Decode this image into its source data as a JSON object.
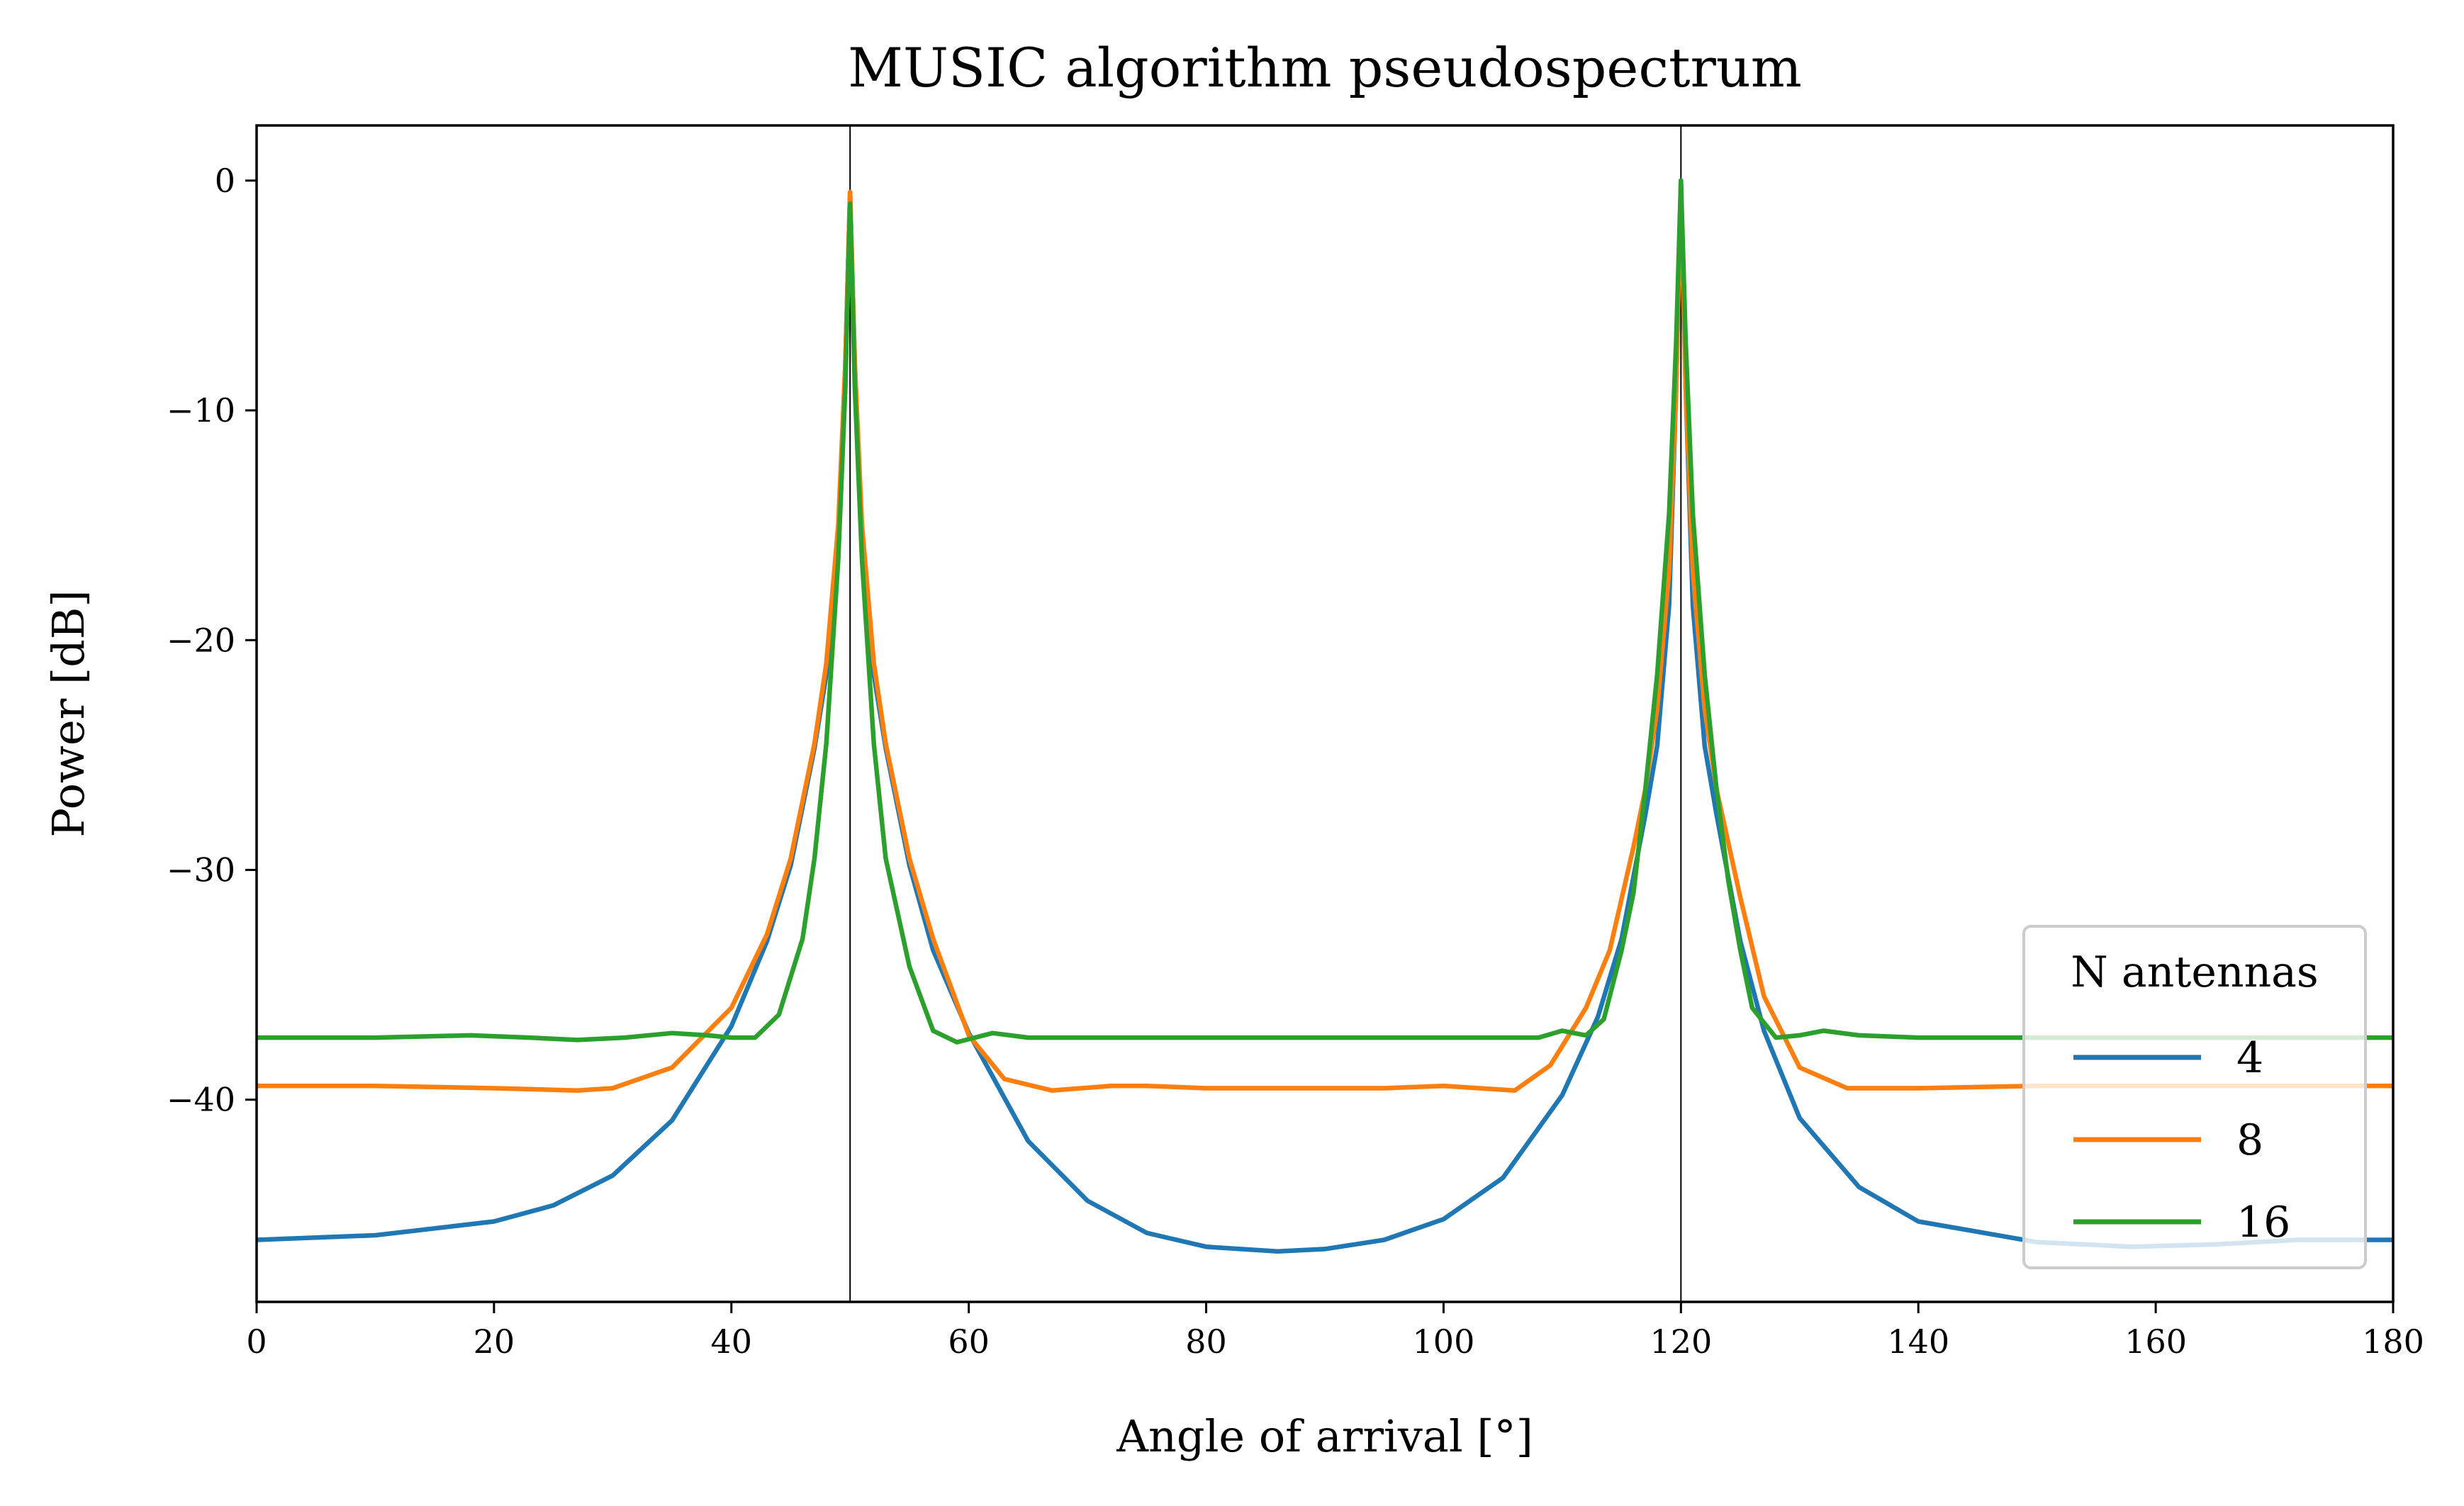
{
  "chart_data": {
    "type": "line",
    "title": "MUSIC algorithm pseudospectrum",
    "xlabel": "Angle of arrival [°]",
    "ylabel": "Power [dB]",
    "xlim": [
      0,
      180
    ],
    "ylim": [
      -48.8,
      2.4
    ],
    "xticks": [
      0,
      20,
      40,
      60,
      80,
      100,
      120,
      140,
      160,
      180
    ],
    "yticks": [
      0,
      -10,
      -20,
      -30,
      -40
    ],
    "ytick_labels": [
      "0",
      "−10",
      "−20",
      "−30",
      "−40"
    ],
    "vlines": [
      50,
      120
    ],
    "legend": {
      "title": "N antennas",
      "placement": "lower right"
    },
    "series": [
      {
        "name": "4",
        "color": "#1f77b4",
        "points": [
          [
            0,
            -46.1
          ],
          [
            10,
            -45.9
          ],
          [
            20,
            -45.3
          ],
          [
            25,
            -44.6
          ],
          [
            30,
            -43.3
          ],
          [
            35,
            -40.9
          ],
          [
            40,
            -36.8
          ],
          [
            43,
            -33.1
          ],
          [
            45,
            -29.8
          ],
          [
            47,
            -24.7
          ],
          [
            48,
            -21.5
          ],
          [
            49,
            -15.5
          ],
          [
            49.6,
            -8
          ],
          [
            50,
            -0.5
          ],
          [
            50.4,
            -8
          ],
          [
            51,
            -15.5
          ],
          [
            52,
            -21.5
          ],
          [
            53,
            -24.7
          ],
          [
            55,
            -29.8
          ],
          [
            57,
            -33.5
          ],
          [
            60,
            -37.1
          ],
          [
            65,
            -41.8
          ],
          [
            70,
            -44.4
          ],
          [
            75,
            -45.8
          ],
          [
            80,
            -46.4
          ],
          [
            86,
            -46.6
          ],
          [
            90,
            -46.5
          ],
          [
            95,
            -46.1
          ],
          [
            100,
            -45.2
          ],
          [
            105,
            -43.4
          ],
          [
            110,
            -39.8
          ],
          [
            113,
            -36.4
          ],
          [
            115,
            -33.0
          ],
          [
            117,
            -27.6
          ],
          [
            118,
            -24.6
          ],
          [
            119,
            -18.5
          ],
          [
            119.6,
            -9
          ],
          [
            120,
            0
          ],
          [
            120.4,
            -9
          ],
          [
            121,
            -18.5
          ],
          [
            122,
            -24.6
          ],
          [
            123,
            -27.6
          ],
          [
            125,
            -33.1
          ],
          [
            127,
            -37.0
          ],
          [
            130,
            -40.8
          ],
          [
            135,
            -43.8
          ],
          [
            140,
            -45.3
          ],
          [
            150,
            -46.2
          ],
          [
            158,
            -46.4
          ],
          [
            165,
            -46.3
          ],
          [
            172,
            -46.1
          ],
          [
            180,
            -46.1
          ]
        ]
      },
      {
        "name": "8",
        "color": "#ff7f0e",
        "points": [
          [
            0,
            -39.4
          ],
          [
            10,
            -39.4
          ],
          [
            20,
            -39.5
          ],
          [
            27,
            -39.6
          ],
          [
            30,
            -39.5
          ],
          [
            35,
            -38.6
          ],
          [
            40,
            -36.0
          ],
          [
            43,
            -32.8
          ],
          [
            45,
            -29.5
          ],
          [
            47,
            -24.5
          ],
          [
            48,
            -21.0
          ],
          [
            49,
            -15.0
          ],
          [
            49.6,
            -8
          ],
          [
            50,
            -0.5
          ],
          [
            50.4,
            -8
          ],
          [
            51,
            -15.0
          ],
          [
            52,
            -21.0
          ],
          [
            53,
            -24.5
          ],
          [
            55,
            -29.5
          ],
          [
            57,
            -33.0
          ],
          [
            60,
            -37.2
          ],
          [
            63,
            -39.1
          ],
          [
            67,
            -39.6
          ],
          [
            72,
            -39.4
          ],
          [
            75,
            -39.4
          ],
          [
            80,
            -39.5
          ],
          [
            85,
            -39.5
          ],
          [
            90,
            -39.5
          ],
          [
            95,
            -39.5
          ],
          [
            100,
            -39.4
          ],
          [
            103,
            -39.5
          ],
          [
            106,
            -39.6
          ],
          [
            109,
            -38.5
          ],
          [
            112,
            -36.0
          ],
          [
            114,
            -33.5
          ],
          [
            116,
            -29.0
          ],
          [
            117,
            -26.5
          ],
          [
            118,
            -23.0
          ],
          [
            119,
            -17.0
          ],
          [
            119.6,
            -9
          ],
          [
            120,
            -0.3
          ],
          [
            120.4,
            -9
          ],
          [
            121,
            -17.0
          ],
          [
            122,
            -23.0
          ],
          [
            123,
            -26.5
          ],
          [
            125,
            -31.2
          ],
          [
            127,
            -35.5
          ],
          [
            130,
            -38.6
          ],
          [
            134,
            -39.5
          ],
          [
            140,
            -39.5
          ],
          [
            150,
            -39.4
          ],
          [
            160,
            -39.4
          ],
          [
            170,
            -39.4
          ],
          [
            180,
            -39.4
          ]
        ]
      },
      {
        "name": "16",
        "color": "#2ca02c",
        "points": [
          [
            0,
            -37.3
          ],
          [
            10,
            -37.3
          ],
          [
            18,
            -37.2
          ],
          [
            23,
            -37.3
          ],
          [
            27,
            -37.4
          ],
          [
            31,
            -37.3
          ],
          [
            35,
            -37.1
          ],
          [
            38,
            -37.2
          ],
          [
            40,
            -37.3
          ],
          [
            42,
            -37.3
          ],
          [
            44,
            -36.3
          ],
          [
            46,
            -33.0
          ],
          [
            47,
            -29.5
          ],
          [
            48,
            -24.5
          ],
          [
            49,
            -16.5
          ],
          [
            49.6,
            -9
          ],
          [
            50,
            -1
          ],
          [
            50.4,
            -9
          ],
          [
            51,
            -16.5
          ],
          [
            52,
            -24.5
          ],
          [
            53,
            -29.5
          ],
          [
            55,
            -34.2
          ],
          [
            57,
            -37.0
          ],
          [
            59,
            -37.5
          ],
          [
            62,
            -37.1
          ],
          [
            65,
            -37.3
          ],
          [
            70,
            -37.3
          ],
          [
            75,
            -37.3
          ],
          [
            80,
            -37.3
          ],
          [
            85,
            -37.3
          ],
          [
            90,
            -37.3
          ],
          [
            95,
            -37.3
          ],
          [
            100,
            -37.3
          ],
          [
            105,
            -37.3
          ],
          [
            108,
            -37.3
          ],
          [
            110,
            -37.0
          ],
          [
            112,
            -37.2
          ],
          [
            113.5,
            -36.5
          ],
          [
            115,
            -33.5
          ],
          [
            116,
            -31.0
          ],
          [
            117,
            -26.5
          ],
          [
            118,
            -21.5
          ],
          [
            119,
            -14.5
          ],
          [
            119.6,
            -7
          ],
          [
            120,
            0
          ],
          [
            120.4,
            -7
          ],
          [
            121,
            -14.5
          ],
          [
            122,
            -21.5
          ],
          [
            123,
            -26.5
          ],
          [
            124,
            -30.5
          ],
          [
            125,
            -33.5
          ],
          [
            126,
            -36.0
          ],
          [
            128,
            -37.3
          ],
          [
            130,
            -37.2
          ],
          [
            132,
            -37.0
          ],
          [
            135,
            -37.2
          ],
          [
            140,
            -37.3
          ],
          [
            145,
            -37.3
          ],
          [
            150,
            -37.3
          ],
          [
            160,
            -37.3
          ],
          [
            170,
            -37.3
          ],
          [
            180,
            -37.3
          ]
        ]
      }
    ]
  }
}
